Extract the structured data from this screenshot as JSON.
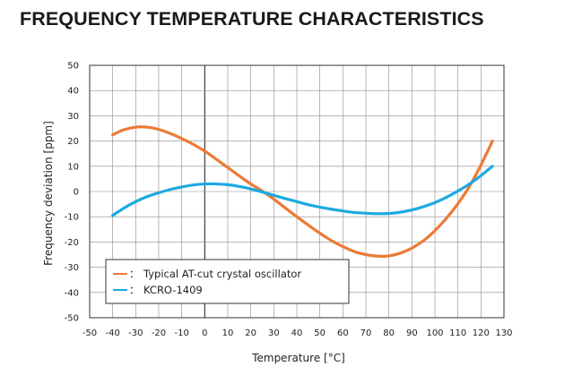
{
  "chart_data": {
    "type": "line",
    "title": "FREQUENCY TEMPERATURE CHARACTERISTICS",
    "xlabel": "Temperature [°C]",
    "ylabel": "Frequency deviation [ppm]",
    "xlim": [
      -50,
      130
    ],
    "ylim": [
      -50,
      50
    ],
    "x_ticks": [
      -50,
      -40,
      -30,
      -20,
      -10,
      0,
      10,
      20,
      30,
      40,
      50,
      60,
      70,
      80,
      90,
      100,
      110,
      120,
      130
    ],
    "y_ticks": [
      50,
      40,
      30,
      20,
      10,
      0,
      -10,
      -20,
      -30,
      -40,
      -50
    ],
    "grid": true,
    "legend_position": "bottom-left",
    "series": [
      {
        "name": "Typical AT-cut crystal oscillator",
        "color": "#ec7a35",
        "x": [
          -40,
          -35,
          -30,
          -25,
          -20,
          -15,
          -10,
          -5,
          0,
          5,
          10,
          15,
          20,
          25,
          30,
          35,
          40,
          45,
          50,
          55,
          60,
          65,
          70,
          75,
          80,
          85,
          90,
          95,
          100,
          105,
          110,
          115,
          120,
          125
        ],
        "y": [
          22.5,
          24.5,
          25.5,
          25.5,
          24.6,
          23.0,
          21.0,
          18.7,
          16.0,
          12.8,
          9.5,
          6.2,
          3.0,
          0.2,
          -3.0,
          -6.5,
          -10.0,
          -13.3,
          -16.5,
          -19.4,
          -21.8,
          -23.8,
          -25.0,
          -25.6,
          -25.5,
          -24.4,
          -22.4,
          -19.5,
          -15.5,
          -10.6,
          -4.8,
          2.0,
          10.5,
          20.0
        ]
      },
      {
        "name": "KCRO-1409",
        "color": "#1da9e0",
        "x": [
          -40,
          -35,
          -30,
          -25,
          -20,
          -15,
          -10,
          -5,
          0,
          5,
          10,
          15,
          20,
          25,
          30,
          35,
          40,
          45,
          50,
          55,
          60,
          65,
          70,
          75,
          80,
          85,
          90,
          95,
          100,
          105,
          110,
          115,
          120,
          125
        ],
        "y": [
          -9.5,
          -6.5,
          -4.0,
          -2.0,
          -0.5,
          0.8,
          1.8,
          2.6,
          3.0,
          3.0,
          2.7,
          2.0,
          1.0,
          -0.2,
          -1.5,
          -2.8,
          -4.0,
          -5.2,
          -6.2,
          -7.0,
          -7.7,
          -8.3,
          -8.6,
          -8.8,
          -8.7,
          -8.2,
          -7.3,
          -6.0,
          -4.4,
          -2.3,
          0.2,
          3.0,
          6.3,
          10.0
        ]
      }
    ]
  },
  "legend": {
    "separator": "："
  },
  "colors": {
    "grid": "#8a8a8a",
    "zero_line": "#1a1a1a",
    "frame": "#333333"
  }
}
